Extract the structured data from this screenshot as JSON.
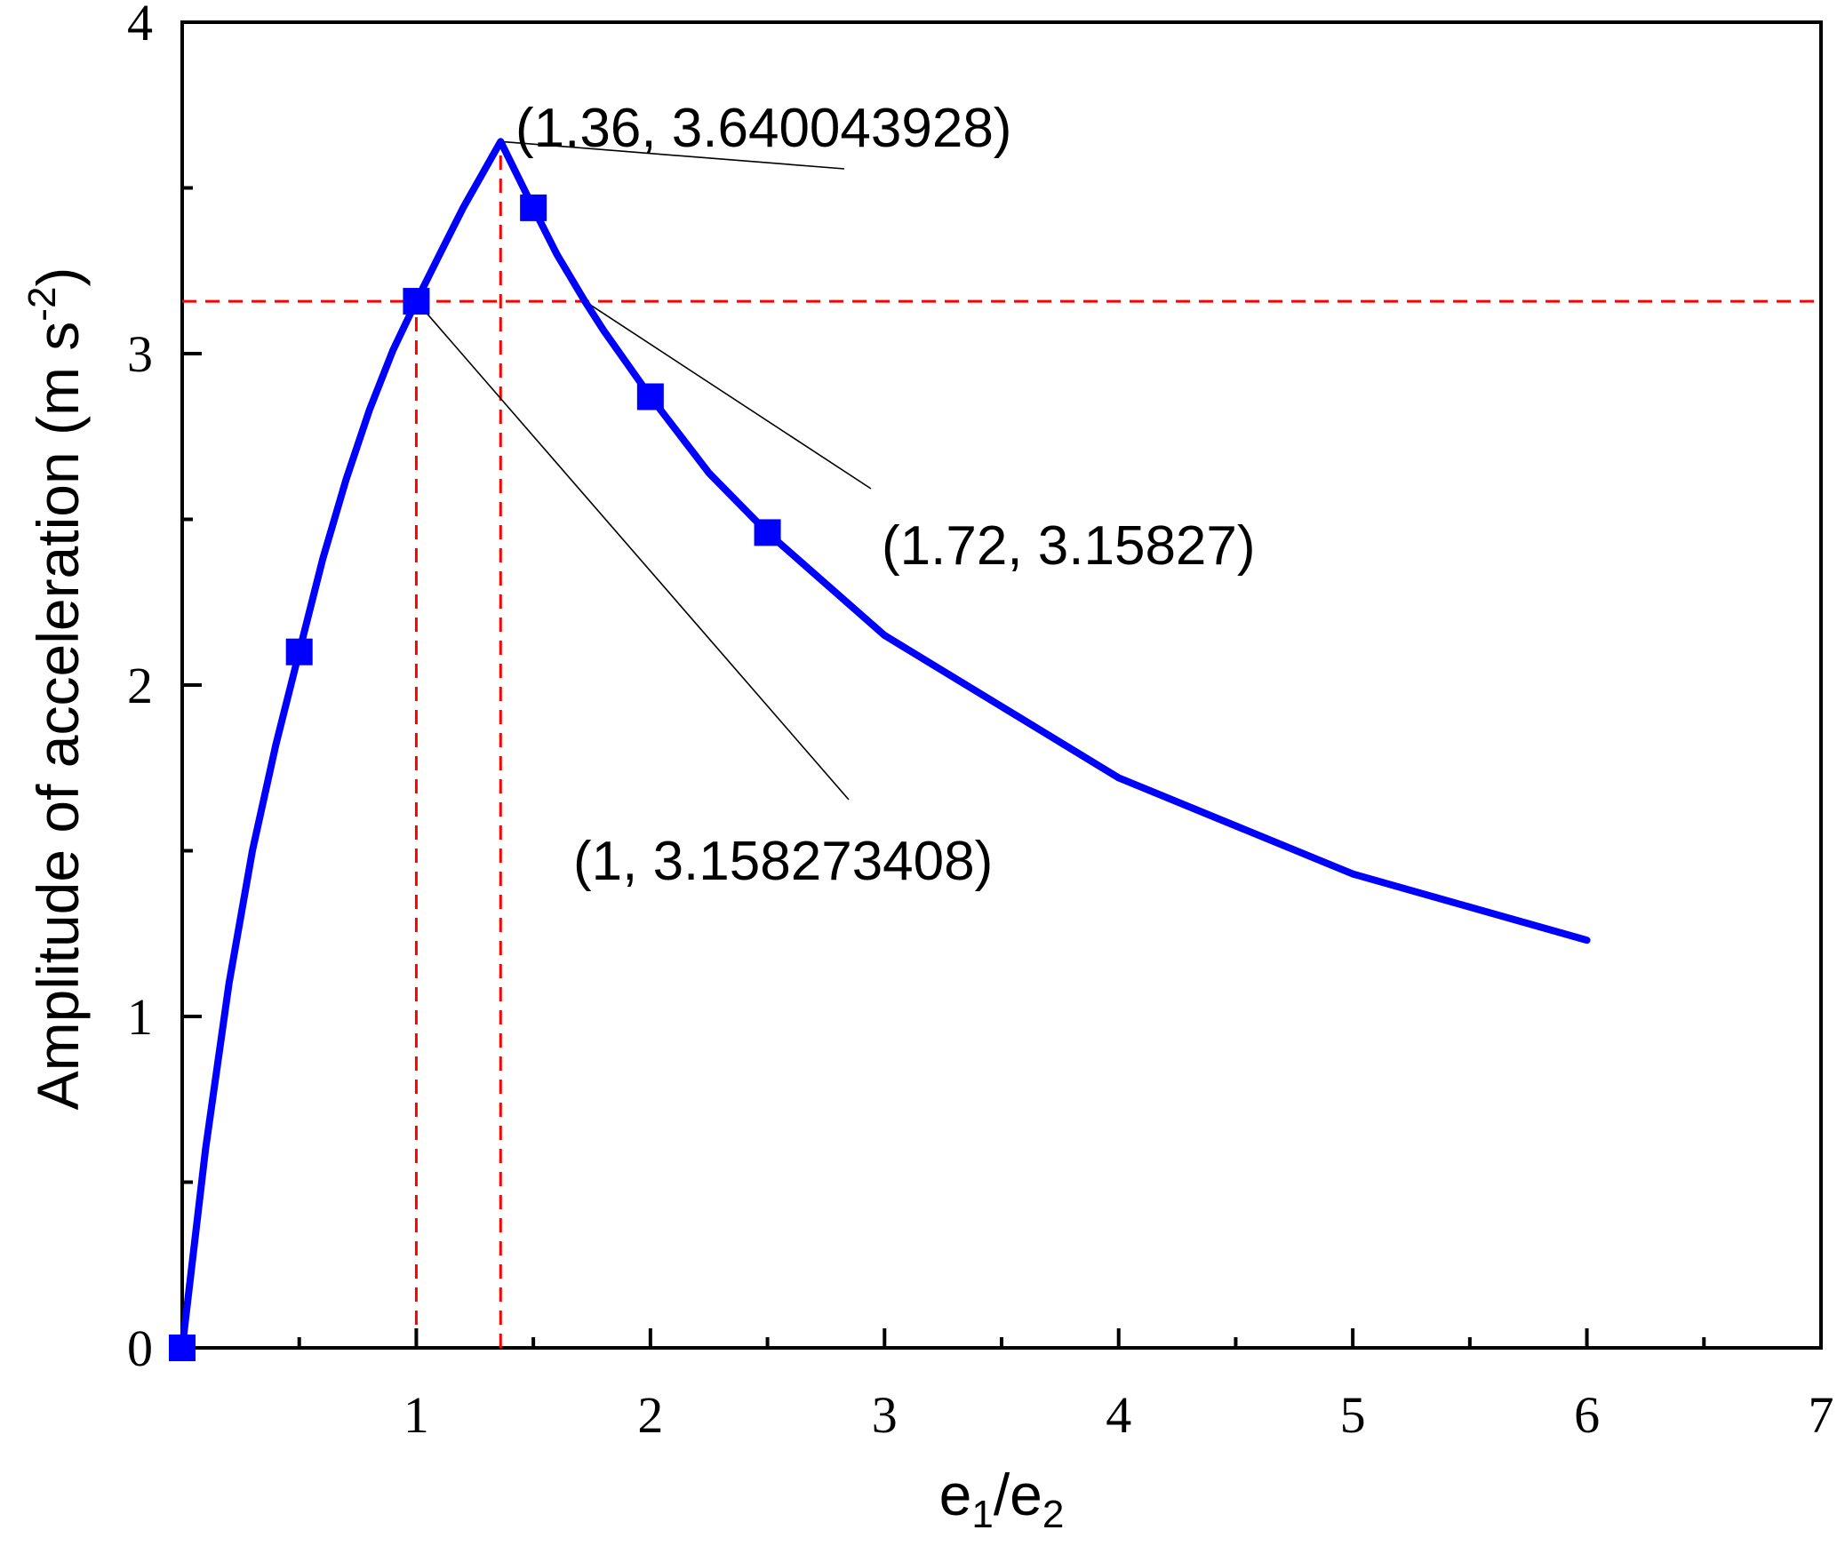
{
  "chart_data": {
    "type": "line",
    "xlim": [
      0,
      7
    ],
    "ylim": [
      0,
      4
    ],
    "x_ticks": [
      1,
      2,
      3,
      4,
      5,
      6,
      7
    ],
    "x_minor_ticks": [
      0.5,
      1.5,
      2.5,
      3.5,
      4.5,
      5.5,
      6.5
    ],
    "x_tick_labels": [
      "1",
      "2",
      "3",
      "4",
      "5",
      "6",
      "7"
    ],
    "y_ticks": [
      0,
      1,
      2,
      3,
      4
    ],
    "y_minor_ticks": [
      0.5,
      1.5,
      2.5,
      3.5
    ],
    "y_tick_labels": [
      "0",
      "1",
      "2",
      "3",
      "4"
    ],
    "xlabel": {
      "base1": "e",
      "sub1": "1",
      "slash": "/",
      "base2": "e",
      "sub2": "2"
    },
    "ylabel": {
      "text": "Amplitude of acceleration (m s",
      "sup": "-2",
      "close": ")"
    },
    "grid": false,
    "series": [
      {
        "color": "#0000ff",
        "x": [
          0,
          0.1,
          0.2,
          0.3,
          0.4,
          0.5,
          0.6,
          0.7,
          0.8,
          0.9,
          1.0,
          1.1,
          1.2,
          1.36,
          1.5,
          1.6,
          1.72,
          1.8,
          2.0,
          2.25,
          2.5,
          3,
          4,
          5,
          6
        ],
        "y": [
          0,
          0.6,
          1.1,
          1.5,
          1.82,
          2.1,
          2.38,
          2.62,
          2.83,
          3.01,
          3.158,
          3.3,
          3.44,
          3.64,
          3.44,
          3.3,
          3.158,
          3.07,
          2.87,
          2.64,
          2.46,
          2.15,
          1.72,
          1.43,
          1.23
        ],
        "markers": [
          {
            "x": 0,
            "y": 0
          },
          {
            "x": 0.5,
            "y": 2.1
          },
          {
            "x": 1.0,
            "y": 3.158
          },
          {
            "x": 1.5,
            "y": 3.44
          },
          {
            "x": 2.0,
            "y": 2.87
          },
          {
            "x": 2.5,
            "y": 2.46
          }
        ]
      }
    ],
    "reference_lines": {
      "color": "#ff0000",
      "horizontal_y": 3.158,
      "vertical_x": [
        1.0,
        1.36
      ]
    },
    "annotations": [
      {
        "text": "(1.36, 3.640043928)",
        "point": {
          "x": 1.36,
          "y": 3.64
        }
      },
      {
        "text": "(1.72, 3.15827)",
        "point": {
          "x": 1.72,
          "y": 3.158
        }
      },
      {
        "text": "(1, 3.158273408)",
        "point": {
          "x": 1.0,
          "y": 3.158
        }
      }
    ]
  }
}
